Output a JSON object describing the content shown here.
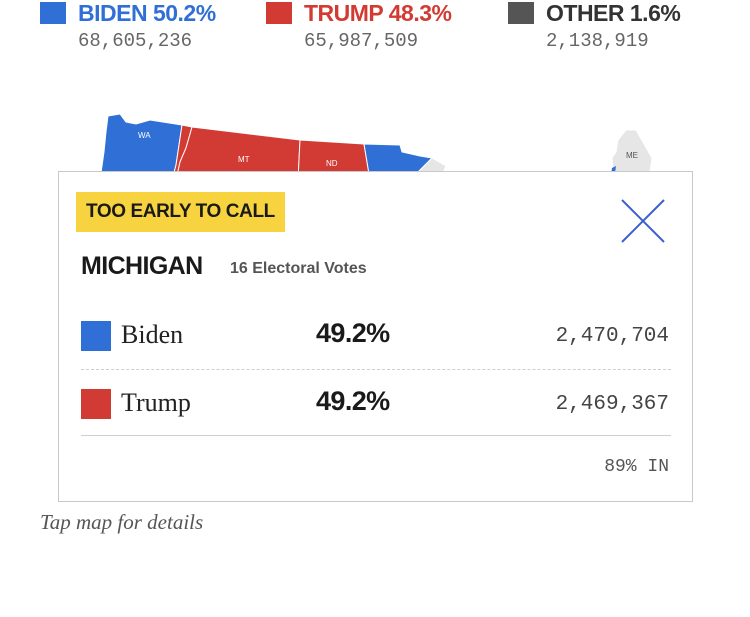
{
  "national": {
    "candidates": [
      {
        "id": "biden",
        "label": "BIDEN 50.2%",
        "votes": "68,605,236",
        "color": "#2f6fd6"
      },
      {
        "id": "trump",
        "label": "TRUMP 48.3%",
        "votes": "65,987,509",
        "color": "#d23b33"
      },
      {
        "id": "other",
        "label": "OTHER 1.6%",
        "votes": "2,138,919",
        "color": "#555555"
      }
    ]
  },
  "map": {
    "state_labels": [
      "WA",
      "MT",
      "ND",
      "ME"
    ],
    "colors": {
      "dem": "#2f6fd6",
      "rep": "#d23b33",
      "neutral": "#e6e6e6"
    }
  },
  "popup": {
    "status": "TOO EARLY TO CALL",
    "state": "MICHIGAN",
    "electoral_votes": "16 Electoral Votes",
    "results": [
      {
        "name": "Biden",
        "pct": "49.2%",
        "votes": "2,470,704",
        "color": "#2f6fd6"
      },
      {
        "name": "Trump",
        "pct": "49.2%",
        "votes": "2,469,367",
        "color": "#d23b33"
      }
    ],
    "reporting": "89% IN",
    "close_icon": "close-icon"
  },
  "footnote": "Tap map for details"
}
